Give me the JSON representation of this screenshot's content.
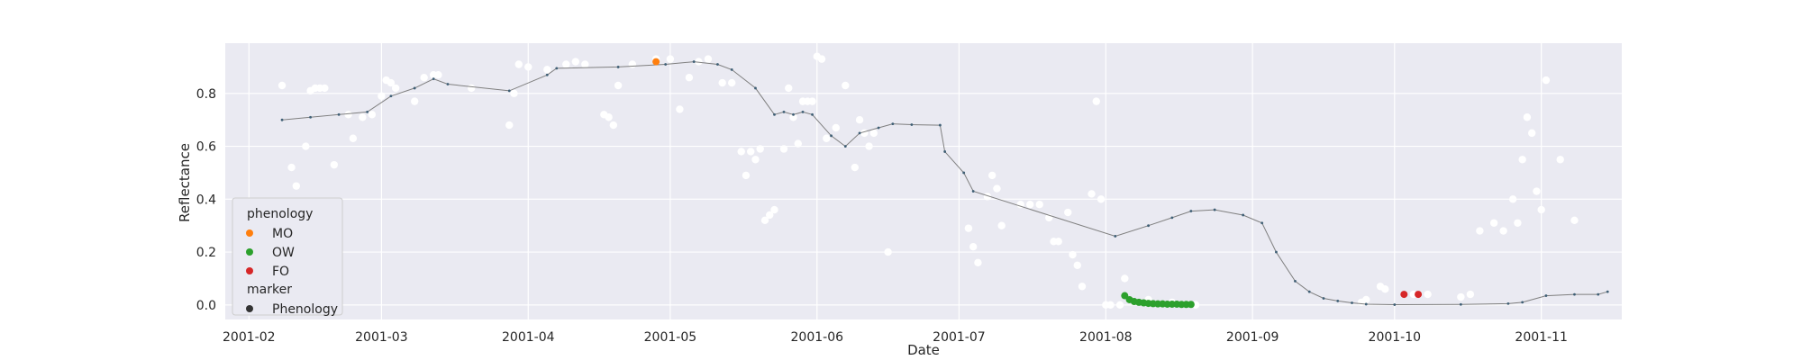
{
  "chart_data": {
    "type": "scatter",
    "title": "",
    "xlabel": "Date",
    "ylabel": "Reflectance",
    "x_type": "date",
    "xlim": [
      "2001-01-27",
      "2001-11-18"
    ],
    "ylim": [
      -0.055,
      0.99
    ],
    "x_ticks": [
      "2001-02-01",
      "2001-03-01",
      "2001-04-01",
      "2001-05-01",
      "2001-06-01",
      "2001-07-01",
      "2001-08-01",
      "2001-09-01",
      "2001-10-01",
      "2001-11-01"
    ],
    "x_tick_labels": [
      "2001-02",
      "2001-03",
      "2001-04",
      "2001-05",
      "2001-06",
      "2001-07",
      "2001-08",
      "2001-09",
      "2001-10",
      "2001-11"
    ],
    "y_ticks": [
      0.0,
      0.2,
      0.4,
      0.6,
      0.8
    ],
    "y_tick_labels": [
      "0.0",
      "0.2",
      "0.4",
      "0.6",
      "0.8"
    ],
    "grid": true,
    "legend": {
      "placement": "lower-left",
      "sections": [
        {
          "title": "phenology",
          "entries": [
            {
              "label": "MO",
              "color": "#ff7f0e"
            },
            {
              "label": "OW",
              "color": "#2ca02c"
            },
            {
              "label": "FO",
              "color": "#d62728"
            }
          ]
        },
        {
          "title": "marker",
          "entries": [
            {
              "label": "Phenology",
              "color": "#333333"
            }
          ]
        }
      ]
    },
    "colors": {
      "background": "#eaeaf2",
      "grid": "#ffffff",
      "observations": "#ffffff",
      "smoothed_line": "#7f7f7f",
      "smoothed_points": "#3f5f75",
      "MO": "#ff7f0e",
      "OW": "#2ca02c",
      "FO": "#d62728"
    },
    "series": [
      {
        "kind": "observations",
        "points": [
          [
            "2001-02-08",
            0.83
          ],
          [
            "2001-02-10",
            0.52
          ],
          [
            "2001-02-11",
            0.45
          ],
          [
            "2001-02-13",
            0.6
          ],
          [
            "2001-02-14",
            0.81
          ],
          [
            "2001-02-15",
            0.82
          ],
          [
            "2001-02-16",
            0.82
          ],
          [
            "2001-02-17",
            0.82
          ],
          [
            "2001-02-19",
            0.53
          ],
          [
            "2001-02-22",
            0.72
          ],
          [
            "2001-02-23",
            0.63
          ],
          [
            "2001-02-25",
            0.71
          ],
          [
            "2001-02-27",
            0.72
          ],
          [
            "2001-03-01",
            0.79
          ],
          [
            "2001-03-02",
            0.85
          ],
          [
            "2001-03-03",
            0.84
          ],
          [
            "2001-03-04",
            0.82
          ],
          [
            "2001-03-08",
            0.77
          ],
          [
            "2001-03-10",
            0.86
          ],
          [
            "2001-03-12",
            0.87
          ],
          [
            "2001-03-13",
            0.87
          ],
          [
            "2001-03-20",
            0.82
          ],
          [
            "2001-03-28",
            0.68
          ],
          [
            "2001-03-29",
            0.8
          ],
          [
            "2001-03-30",
            0.91
          ],
          [
            "2001-04-01",
            0.9
          ],
          [
            "2001-04-05",
            0.89
          ],
          [
            "2001-04-09",
            0.91
          ],
          [
            "2001-04-11",
            0.92
          ],
          [
            "2001-04-13",
            0.91
          ],
          [
            "2001-04-17",
            0.72
          ],
          [
            "2001-04-18",
            0.71
          ],
          [
            "2001-04-19",
            0.68
          ],
          [
            "2001-04-20",
            0.83
          ],
          [
            "2001-04-23",
            0.91
          ],
          [
            "2001-04-28",
            0.93
          ],
          [
            "2001-05-01",
            0.93
          ],
          [
            "2001-05-03",
            0.74
          ],
          [
            "2001-05-05",
            0.86
          ],
          [
            "2001-05-07",
            0.92
          ],
          [
            "2001-05-09",
            0.93
          ],
          [
            "2001-05-12",
            0.84
          ],
          [
            "2001-05-14",
            0.84
          ],
          [
            "2001-05-16",
            0.58
          ],
          [
            "2001-05-17",
            0.49
          ],
          [
            "2001-05-18",
            0.58
          ],
          [
            "2001-05-19",
            0.55
          ],
          [
            "2001-05-20",
            0.59
          ],
          [
            "2001-05-21",
            0.32
          ],
          [
            "2001-05-22",
            0.34
          ],
          [
            "2001-05-23",
            0.36
          ],
          [
            "2001-05-25",
            0.59
          ],
          [
            "2001-05-26",
            0.82
          ],
          [
            "2001-05-27",
            0.71
          ],
          [
            "2001-05-28",
            0.61
          ],
          [
            "2001-05-29",
            0.77
          ],
          [
            "2001-05-30",
            0.77
          ],
          [
            "2001-05-31",
            0.77
          ],
          [
            "2001-06-01",
            0.94
          ],
          [
            "2001-06-02",
            0.93
          ],
          [
            "2001-06-03",
            0.63
          ],
          [
            "2001-06-05",
            0.67
          ],
          [
            "2001-06-07",
            0.83
          ],
          [
            "2001-06-09",
            0.52
          ],
          [
            "2001-06-10",
            0.7
          ],
          [
            "2001-06-11",
            0.65
          ],
          [
            "2001-06-12",
            0.6
          ],
          [
            "2001-06-13",
            0.65
          ],
          [
            "2001-06-16",
            0.2
          ],
          [
            "2001-07-03",
            0.29
          ],
          [
            "2001-07-04",
            0.22
          ],
          [
            "2001-07-05",
            0.16
          ],
          [
            "2001-07-07",
            0.41
          ],
          [
            "2001-07-08",
            0.49
          ],
          [
            "2001-07-09",
            0.44
          ],
          [
            "2001-07-10",
            0.3
          ],
          [
            "2001-07-14",
            0.38
          ],
          [
            "2001-07-16",
            0.38
          ],
          [
            "2001-07-18",
            0.38
          ],
          [
            "2001-07-20",
            0.33
          ],
          [
            "2001-07-21",
            0.24
          ],
          [
            "2001-07-22",
            0.24
          ],
          [
            "2001-07-24",
            0.35
          ],
          [
            "2001-07-25",
            0.19
          ],
          [
            "2001-07-26",
            0.15
          ],
          [
            "2001-07-27",
            0.07
          ],
          [
            "2001-07-29",
            0.42
          ],
          [
            "2001-07-30",
            0.77
          ],
          [
            "2001-07-31",
            0.4
          ],
          [
            "2001-08-01",
            0.0
          ],
          [
            "2001-08-02",
            0.0
          ],
          [
            "2001-08-04",
            0.0
          ],
          [
            "2001-08-05",
            0.1
          ],
          [
            "2001-08-10",
            0.02
          ],
          [
            "2001-08-15",
            0.01
          ],
          [
            "2001-08-20",
            0.0
          ],
          [
            "2001-09-24",
            0.01
          ],
          [
            "2001-09-25",
            0.02
          ],
          [
            "2001-09-28",
            0.07
          ],
          [
            "2001-09-29",
            0.06
          ],
          [
            "2001-10-05",
            0.04
          ],
          [
            "2001-10-08",
            0.04
          ],
          [
            "2001-10-15",
            0.03
          ],
          [
            "2001-10-17",
            0.04
          ],
          [
            "2001-10-19",
            0.28
          ],
          [
            "2001-10-22",
            0.31
          ],
          [
            "2001-10-24",
            0.28
          ],
          [
            "2001-10-26",
            0.4
          ],
          [
            "2001-10-27",
            0.31
          ],
          [
            "2001-10-28",
            0.55
          ],
          [
            "2001-10-29",
            0.71
          ],
          [
            "2001-10-30",
            0.65
          ],
          [
            "2001-10-31",
            0.43
          ],
          [
            "2001-11-01",
            0.36
          ],
          [
            "2001-11-02",
            0.85
          ],
          [
            "2001-11-05",
            0.55
          ],
          [
            "2001-11-08",
            0.32
          ]
        ]
      },
      {
        "kind": "smoothed",
        "points": [
          [
            "2001-02-08",
            0.7
          ],
          [
            "2001-02-14",
            0.71
          ],
          [
            "2001-02-20",
            0.72
          ],
          [
            "2001-02-26",
            0.73
          ],
          [
            "2001-03-03",
            0.79
          ],
          [
            "2001-03-08",
            0.82
          ],
          [
            "2001-03-12",
            0.855
          ],
          [
            "2001-03-15",
            0.835
          ],
          [
            "2001-03-28",
            0.81
          ],
          [
            "2001-04-05",
            0.87
          ],
          [
            "2001-04-07",
            0.895
          ],
          [
            "2001-04-20",
            0.9
          ],
          [
            "2001-04-30",
            0.91
          ],
          [
            "2001-05-06",
            0.92
          ],
          [
            "2001-05-11",
            0.91
          ],
          [
            "2001-05-14",
            0.89
          ],
          [
            "2001-05-19",
            0.82
          ],
          [
            "2001-05-23",
            0.72
          ],
          [
            "2001-05-25",
            0.73
          ],
          [
            "2001-05-27",
            0.72
          ],
          [
            "2001-05-29",
            0.73
          ],
          [
            "2001-05-31",
            0.72
          ],
          [
            "2001-06-04",
            0.64
          ],
          [
            "2001-06-07",
            0.6
          ],
          [
            "2001-06-10",
            0.65
          ],
          [
            "2001-06-14",
            0.67
          ],
          [
            "2001-06-17",
            0.685
          ],
          [
            "2001-06-21",
            0.682
          ],
          [
            "2001-06-27",
            0.68
          ],
          [
            "2001-06-28",
            0.58
          ],
          [
            "2001-07-02",
            0.5
          ],
          [
            "2001-07-04",
            0.43
          ],
          [
            "2001-08-03",
            0.26
          ],
          [
            "2001-08-10",
            0.3
          ],
          [
            "2001-08-15",
            0.33
          ],
          [
            "2001-08-19",
            0.355
          ],
          [
            "2001-08-24",
            0.36
          ],
          [
            "2001-08-30",
            0.34
          ],
          [
            "2001-09-03",
            0.31
          ],
          [
            "2001-09-06",
            0.2
          ],
          [
            "2001-09-10",
            0.09
          ],
          [
            "2001-09-13",
            0.05
          ],
          [
            "2001-09-16",
            0.025
          ],
          [
            "2001-09-19",
            0.015
          ],
          [
            "2001-09-22",
            0.008
          ],
          [
            "2001-09-25",
            0.003
          ],
          [
            "2001-10-01",
            0.001
          ],
          [
            "2001-10-15",
            0.002
          ],
          [
            "2001-10-25",
            0.005
          ],
          [
            "2001-10-28",
            0.01
          ],
          [
            "2001-11-02",
            0.035
          ],
          [
            "2001-11-08",
            0.04
          ],
          [
            "2001-11-13",
            0.04
          ],
          [
            "2001-11-15",
            0.05
          ]
        ]
      },
      {
        "kind": "phenology",
        "label": "MO",
        "points": [
          [
            "2001-04-28",
            0.92
          ]
        ]
      },
      {
        "kind": "phenology",
        "label": "OW",
        "points": [
          [
            "2001-08-05",
            0.035
          ],
          [
            "2001-08-06",
            0.02
          ],
          [
            "2001-08-07",
            0.013
          ],
          [
            "2001-08-08",
            0.01
          ],
          [
            "2001-08-09",
            0.008
          ],
          [
            "2001-08-10",
            0.006
          ],
          [
            "2001-08-11",
            0.005
          ],
          [
            "2001-08-12",
            0.004
          ],
          [
            "2001-08-13",
            0.004
          ],
          [
            "2001-08-14",
            0.003
          ],
          [
            "2001-08-15",
            0.003
          ],
          [
            "2001-08-16",
            0.003
          ],
          [
            "2001-08-17",
            0.002
          ],
          [
            "2001-08-18",
            0.002
          ],
          [
            "2001-08-19",
            0.002
          ]
        ]
      },
      {
        "kind": "phenology",
        "label": "FO",
        "points": [
          [
            "2001-10-03",
            0.04
          ],
          [
            "2001-10-06",
            0.04
          ]
        ]
      }
    ]
  }
}
